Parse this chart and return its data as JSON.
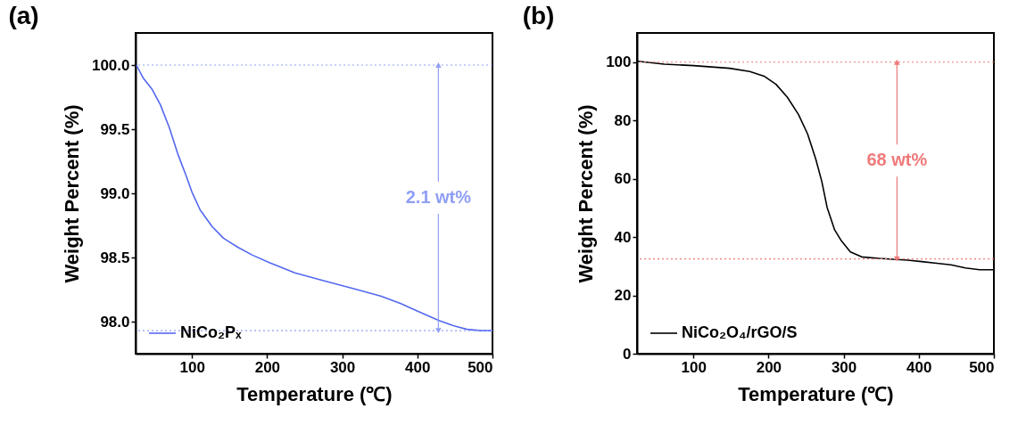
{
  "chart_data": [
    {
      "type": "line",
      "title": "(a)",
      "xlabel": "Temperature (℃)",
      "ylabel": "Weight Percent (%)",
      "xlim": [
        25,
        500
      ],
      "ylim": [
        97.75,
        100.25
      ],
      "xticks": [
        100,
        200,
        300,
        400,
        500
      ],
      "yticks": [
        {
          "value": 98,
          "label": "98.0"
        },
        98.5,
        {
          "value": 99,
          "label": "99.0"
        },
        99.5,
        {
          "value": 100,
          "label": "100.0"
        }
      ],
      "grid": false,
      "legend": "bottom left",
      "line_style": "solid",
      "series": [
        {
          "name": "NiCo₂Pₓ",
          "color": "#5468f0",
          "x": [
            26,
            35,
            47,
            58,
            70,
            81,
            92,
            100,
            111,
            127,
            142,
            161,
            180,
            203,
            237,
            275,
            313,
            351,
            378,
            401,
            428,
            447,
            466,
            485,
            500
          ],
          "values": [
            100.0,
            99.9,
            99.81,
            99.69,
            99.51,
            99.31,
            99.14,
            99.01,
            98.87,
            98.74,
            98.65,
            98.58,
            98.52,
            98.46,
            98.38,
            98.32,
            98.26,
            98.2,
            98.14,
            98.08,
            98.01,
            97.97,
            97.94,
            97.93,
            97.93
          ]
        }
      ],
      "ref_lines": [
        {
          "axis": "y",
          "value": 100.0,
          "color": "#8f9ff5",
          "line_style": "dotted"
        },
        {
          "axis": "y",
          "value": 97.93,
          "color": "#8f9ff5",
          "line_style": "dotted"
        }
      ],
      "annotations": [
        {
          "text": "2.1 wt%",
          "x": 428,
          "y": 100.0
        }
      ]
    },
    {
      "type": "line",
      "title": "(b)",
      "xlabel": "Temperature (℃)",
      "ylabel": "Weight Percent (%)",
      "xlim": [
        25,
        500
      ],
      "ylim": [
        0,
        110
      ],
      "xticks": [
        100,
        200,
        300,
        400,
        500
      ],
      "yticks": [
        0,
        20,
        40,
        60,
        80,
        100
      ],
      "grid": false,
      "legend": "bottom left",
      "line_style": "solid",
      "series": [
        {
          "name": "NiCo₂O₄/rGO/S",
          "color": "#000000",
          "x": [
            26,
            61,
            100,
            148,
            175,
            194,
            210,
            225,
            240,
            252,
            263,
            271,
            278,
            288,
            297,
            309,
            324,
            347,
            385,
            404,
            424,
            443,
            462,
            481,
            500
          ],
          "values": [
            100.3,
            99.3,
            98.8,
            97.9,
            96.8,
            95.2,
            92.4,
            88.0,
            82.0,
            75.4,
            66.7,
            59.0,
            50.2,
            42.5,
            38.7,
            34.9,
            33.2,
            32.7,
            32.1,
            31.6,
            31.0,
            30.5,
            29.4,
            28.8,
            28.8
          ]
        }
      ],
      "ref_lines": [
        {
          "axis": "y",
          "value": 100,
          "color": "#f07a7a",
          "line_style": "dotted"
        },
        {
          "axis": "y",
          "value": 32.5,
          "color": "#f07a7a",
          "line_style": "dotted"
        }
      ],
      "annotations": [
        {
          "text": "68 wt%",
          "x": 371,
          "y": 100
        }
      ]
    }
  ]
}
